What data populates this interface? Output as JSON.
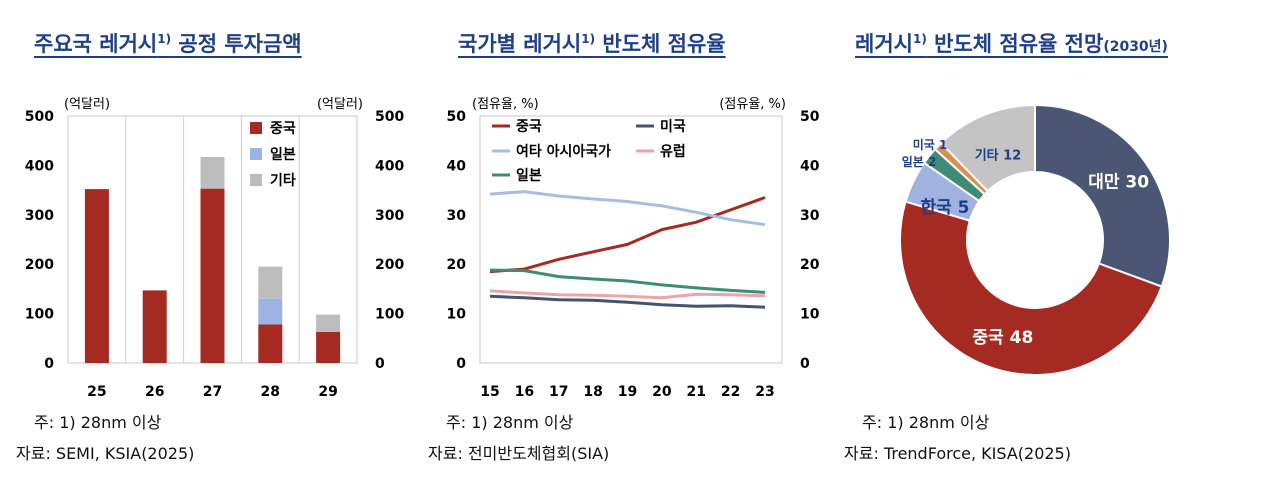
{
  "colors": {
    "title": "#1f3f86",
    "china": "#a52a22",
    "japan": "#9db3e2",
    "other": "#bdbdbd",
    "usa": "#475270",
    "other_asia": "#a9bde4",
    "europe": "#eaa6a6",
    "japan_line": "#3d8c73",
    "taiwan": "#4b5675",
    "korea": "#9fb2e0",
    "usa_donut": "#d98f4e",
    "japan_donut": "#3d8c73",
    "other_donut": "#c4c4c4"
  },
  "panel1": {
    "title_main": "주요국 레거시",
    "title_sup": "1)",
    "title_rest": " 공정 투자금액",
    "note1": "주:  1) 28nm 이상",
    "note2": "자료:  SEMI,  KSIA(2025)"
  },
  "panel2": {
    "title_main": "국가별 레거시",
    "title_sup": "1)",
    "title_rest": " 반도체 점유율",
    "note1": "주:  1) 28nm 이상",
    "note2": "자료:  전미반도체협회(SIA)"
  },
  "panel3": {
    "title_main": "레거시",
    "title_sup": "1)",
    "title_rest": " 반도체 점유율 전망",
    "title_small": "(2030년)",
    "note1": "주:  1) 28nm 이상",
    "note2": "자료:  TrendForce,  KISA(2025)"
  },
  "chart_data": [
    {
      "type": "bar",
      "stacked": true,
      "unit_left": "(억달러)",
      "unit_right": "(억달러)",
      "categories": [
        "25",
        "26",
        "27",
        "28",
        "29"
      ],
      "series": [
        {
          "name": "중국",
          "values": [
            352,
            147,
            353,
            78,
            63
          ]
        },
        {
          "name": "일본",
          "values": [
            0,
            0,
            0,
            52,
            0
          ]
        },
        {
          "name": "기타",
          "values": [
            0,
            0,
            64,
            65,
            35
          ]
        }
      ],
      "ylim": [
        0,
        500
      ],
      "yticks": [
        0,
        100,
        200,
        300,
        400,
        500
      ],
      "legend_position": "top-right",
      "grid": "vertical separators"
    },
    {
      "type": "line",
      "unit_left": "(점유율, %)",
      "unit_right": "(점유율, %)",
      "x": [
        "15",
        "16",
        "17",
        "18",
        "19",
        "20",
        "21",
        "22",
        "23"
      ],
      "series": [
        {
          "name": "중국",
          "values": [
            18.5,
            19,
            21,
            22.5,
            24,
            27,
            28.5,
            31,
            33.5
          ]
        },
        {
          "name": "미국",
          "values": [
            13.5,
            13.2,
            12.8,
            12.7,
            12.3,
            11.8,
            11.5,
            11.6,
            11.3
          ]
        },
        {
          "name": "여타 아시아국가",
          "values": [
            34.2,
            34.7,
            33.8,
            33.2,
            32.7,
            31.8,
            30.5,
            29,
            28
          ]
        },
        {
          "name": "유럽",
          "values": [
            14.6,
            14.2,
            13.8,
            13.7,
            13.5,
            13.2,
            13.9,
            13.8,
            13.6
          ]
        },
        {
          "name": "일본",
          "values": [
            18.8,
            18.7,
            17.5,
            17,
            16.6,
            15.8,
            15.2,
            14.7,
            14.3
          ]
        }
      ],
      "ylim": [
        0,
        50
      ],
      "yticks": [
        0,
        10,
        20,
        30,
        40,
        50
      ],
      "legend_position": "top"
    },
    {
      "type": "pie",
      "donut": true,
      "slices": [
        {
          "name": "대만",
          "value": 30,
          "label": "대만 30"
        },
        {
          "name": "중국",
          "value": 48,
          "label": "중국 48"
        },
        {
          "name": "한국",
          "value": 5,
          "label": "한국 5"
        },
        {
          "name": "일본",
          "value": 2,
          "label": "일본 2"
        },
        {
          "name": "미국",
          "value": 1,
          "label": "미국 1"
        },
        {
          "name": "기타",
          "value": 12,
          "label": "기타 12"
        }
      ]
    }
  ]
}
